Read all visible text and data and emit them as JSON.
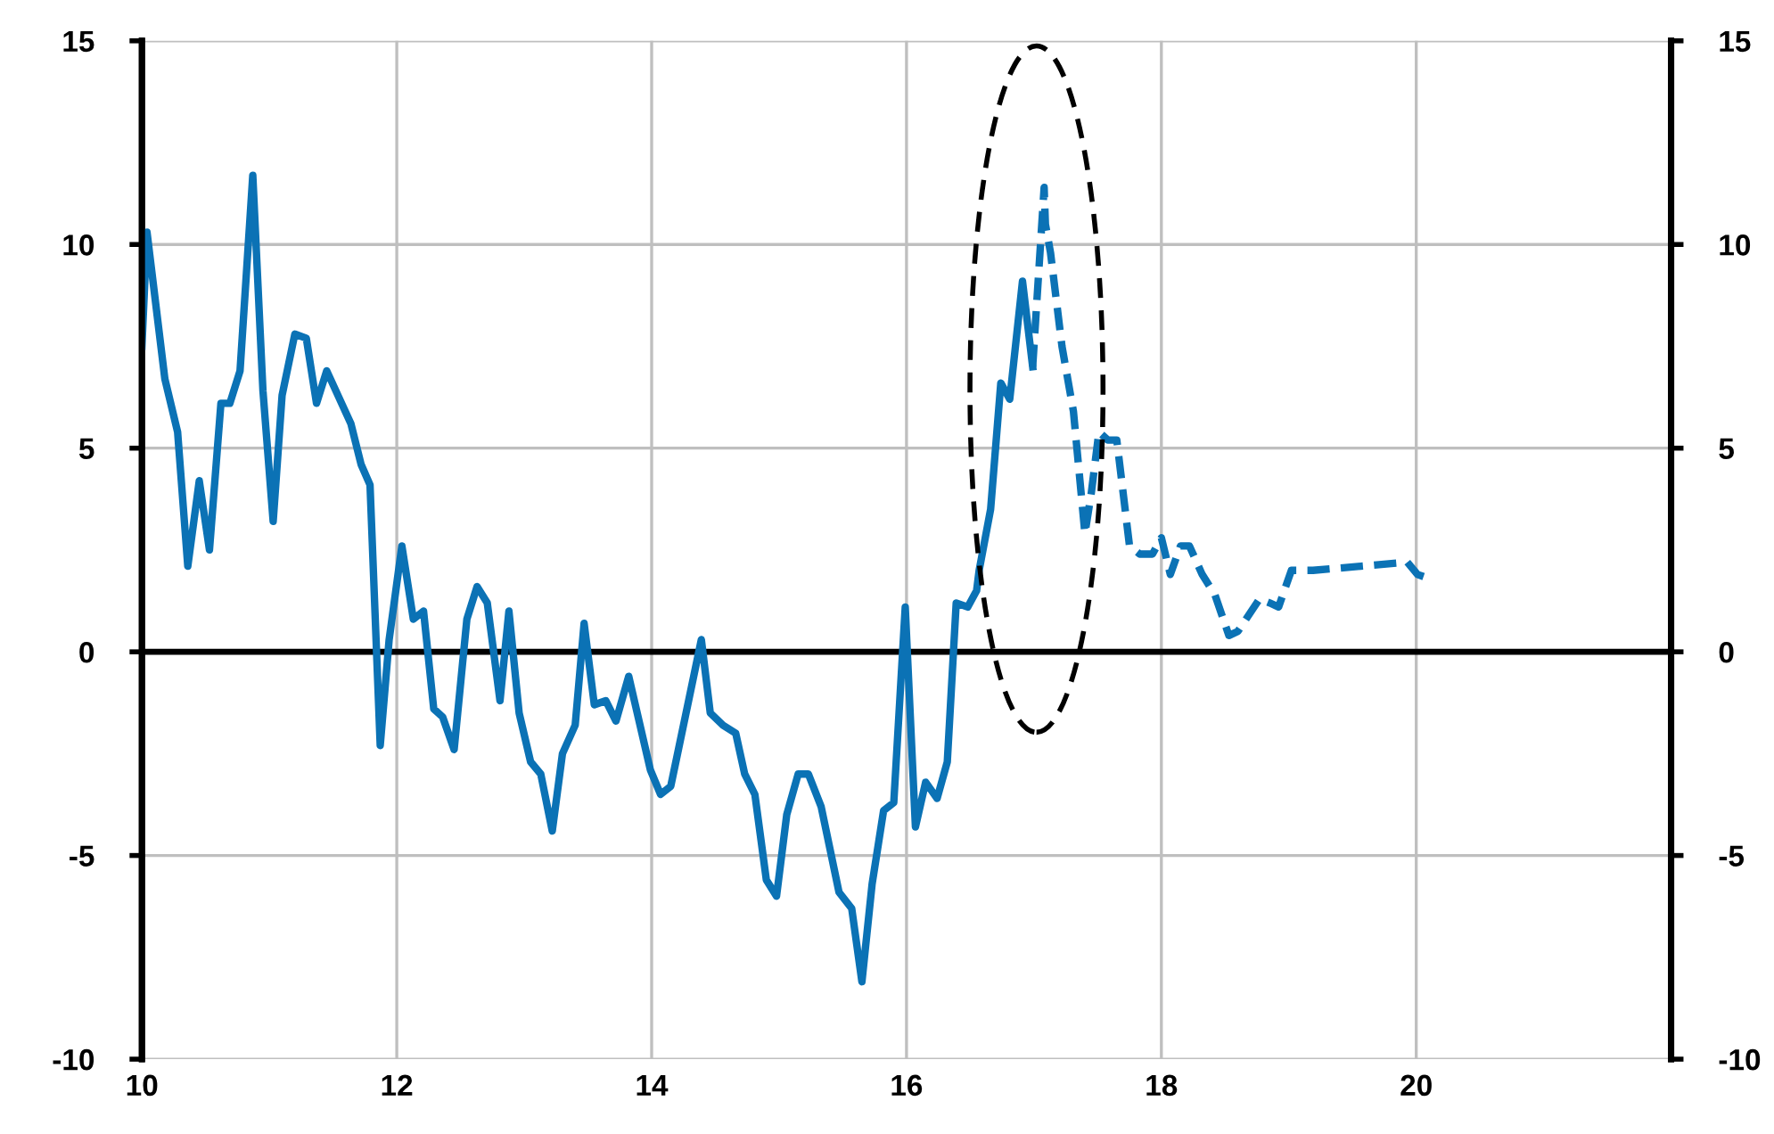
{
  "chart_data": {
    "type": "line",
    "xlim": [
      10,
      22
    ],
    "xticks": [
      10,
      12,
      14,
      16,
      18,
      20
    ],
    "ylim": [
      -10,
      15
    ],
    "yticks": [
      -10,
      -5,
      0,
      5,
      10,
      15
    ],
    "y2lim": [
      -10,
      15
    ],
    "y2ticks": [
      -10,
      -5,
      0,
      5,
      10,
      15
    ],
    "grid": true,
    "marker": "none",
    "ref_lines": [
      {
        "axis": "y",
        "value": 0,
        "color": "#000000",
        "line_style": "solid"
      }
    ],
    "series": [
      {
        "color": "#0b72b5",
        "line_style": "solid",
        "x": [
          10,
          10.04,
          10.18,
          10.28,
          10.36,
          10.45,
          10.53,
          10.62,
          10.69,
          10.77,
          10.87,
          10.95,
          11.03,
          11.1,
          11.2,
          11.29,
          11.37,
          11.45,
          11.64,
          11.72,
          11.79,
          11.87,
          11.94,
          12.04,
          12.13,
          12.21,
          12.29,
          12.36,
          12.45,
          12.55,
          12.63,
          12.71,
          12.81,
          12.88,
          12.96,
          13.05,
          13.13,
          13.22,
          13.3,
          13.4,
          13.47,
          13.55,
          13.64,
          13.72,
          13.82,
          13.99,
          14.07,
          14.15,
          14.39,
          14.46,
          14.56,
          14.66,
          14.73,
          14.81,
          14.9,
          14.98,
          15.06,
          15.15,
          15.23,
          15.33,
          15.47,
          15.57,
          15.65,
          15.73,
          15.82,
          15.9,
          15.99,
          16.07,
          16.15,
          16.24,
          16.32,
          16.39,
          16.48,
          16.55,
          16.57,
          16.66,
          16.74,
          16.81,
          16.91,
          16.99
        ],
        "values": [
          7.5,
          10.3,
          6.7,
          5.4,
          2.1,
          4.2,
          2.5,
          6.1,
          6.1,
          6.9,
          11.7,
          6.4,
          3.2,
          6.3,
          7.8,
          7.7,
          6.1,
          6.9,
          5.6,
          4.6,
          4.1,
          -2.3,
          0.3,
          2.6,
          0.8,
          1.0,
          -1.4,
          -1.6,
          -2.4,
          0.8,
          1.6,
          1.2,
          -1.2,
          1.0,
          -1.5,
          -2.7,
          -3.0,
          -4.4,
          -2.5,
          -1.8,
          0.7,
          -1.3,
          -1.2,
          -1.7,
          -0.6,
          -2.9,
          -3.5,
          -3.3,
          0.3,
          -1.5,
          -1.8,
          -2.0,
          -3.0,
          -3.5,
          -5.6,
          -6.0,
          -4.0,
          -3.0,
          -3.0,
          -3.8,
          -5.9,
          -6.3,
          -8.1,
          -5.7,
          -3.9,
          -3.7,
          1.1,
          -4.3,
          -3.2,
          -3.6,
          -2.7,
          1.2,
          1.1,
          1.5,
          2.0,
          3.5,
          6.6,
          6.2,
          9.1,
          7.0
        ]
      },
      {
        "color": "#0b72b5",
        "line_style": "dashed",
        "x": [
          16.99,
          17.08,
          17.09,
          17.13,
          17.22,
          17.31,
          17.37,
          17.4,
          17.45,
          17.51,
          17.58,
          17.65,
          17.75,
          17.83,
          17.93,
          18.0,
          18.07,
          18.15,
          18.22,
          18.32,
          18.42,
          18.53,
          18.6,
          18.77,
          18.85,
          18.92,
          19.02,
          19.19,
          19.93,
          20.01,
          20.1
        ],
        "values": [
          7.0,
          11.4,
          10.5,
          9.8,
          7.5,
          5.9,
          3.9,
          2.9,
          3.9,
          5.4,
          5.2,
          5.2,
          2.6,
          2.4,
          2.4,
          2.8,
          1.9,
          2.6,
          2.6,
          1.9,
          1.4,
          0.4,
          0.5,
          1.3,
          1.2,
          1.1,
          2.0,
          2.0,
          2.2,
          1.9,
          1.8
        ]
      }
    ]
  }
}
